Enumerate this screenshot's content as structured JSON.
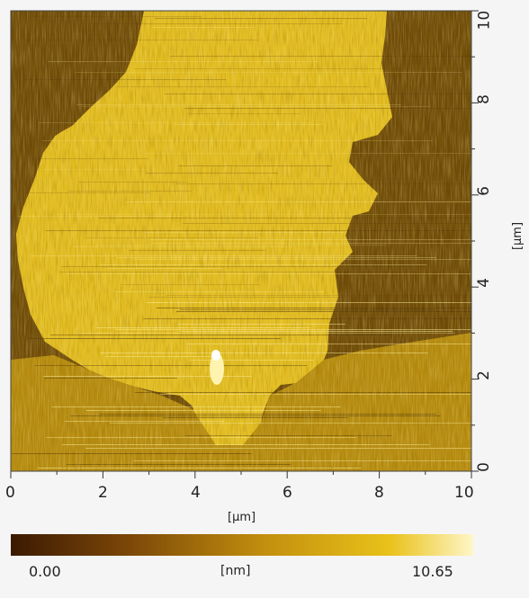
{
  "image": {
    "x_axis": {
      "label": "[µm]",
      "ticks": [
        "0",
        "2",
        "4",
        "6",
        "8",
        "10"
      ],
      "range": [
        0,
        10
      ]
    },
    "y_axis": {
      "label": "[µm]",
      "ticks": [
        "0",
        "2",
        "4",
        "6",
        "8",
        "10"
      ],
      "range": [
        0,
        10
      ]
    },
    "colorbar": {
      "min_label": "0.00",
      "max_label": "10.65",
      "unit_label": "[nm]",
      "colors": [
        "#3b1a02",
        "#7a4608",
        "#c38f0e",
        "#e9c21a",
        "#fff6c8"
      ]
    },
    "palette": {
      "dark": "#6e4a08",
      "mid": "#b58a0e",
      "light": "#e2bc20",
      "highlight": "#fff3b0"
    }
  }
}
